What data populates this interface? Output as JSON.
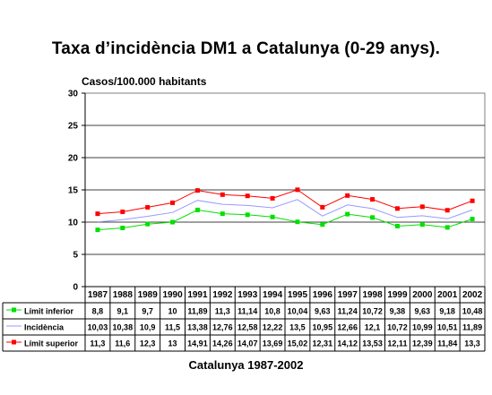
{
  "chart_data": {
    "type": "line",
    "title": "Taxa d’incidència DM1 a Catalunya (0-29 anys).",
    "ylabel": "Casos/100.000 habitants",
    "xlabel": "",
    "caption": "Catalunya 1987-2002",
    "ylim": [
      0,
      30
    ],
    "yticks": [
      0,
      5,
      10,
      15,
      20,
      25,
      30
    ],
    "grid": "horizontal",
    "legend": "data-table-below",
    "categories": [
      "1987",
      "1988",
      "1989",
      "1990",
      "1991",
      "1992",
      "1993",
      "1994",
      "1995",
      "1996",
      "1997",
      "1998",
      "1999",
      "2000",
      "2001",
      "2002"
    ],
    "series": [
      {
        "name": "Límit inferior",
        "color": "#00e000",
        "marker": "square",
        "values": [
          8.8,
          9.1,
          9.7,
          10,
          11.89,
          11.3,
          11.14,
          10.8,
          10.04,
          9.63,
          11.24,
          10.72,
          9.38,
          9.63,
          9.18,
          10.48
        ],
        "labels": [
          "8,8",
          "9,1",
          "9,7",
          "10",
          "11,89",
          "11,3",
          "11,14",
          "10,8",
          "10,04",
          "9,63",
          "11,24",
          "10,72",
          "9,38",
          "9,63",
          "9,18",
          "10,48"
        ]
      },
      {
        "name": "Incidència",
        "color": "#9999ff",
        "marker": "none",
        "values": [
          10.03,
          10.38,
          10.9,
          11.5,
          13.38,
          12.76,
          12.58,
          12.22,
          13.5,
          10.95,
          12.66,
          12.1,
          10.72,
          10.99,
          10.51,
          11.89
        ],
        "labels": [
          "10,03",
          "10,38",
          "10,9",
          "11,5",
          "13,38",
          "12,76",
          "12,58",
          "12,22",
          "13,5",
          "10,95",
          "12,66",
          "12,1",
          "10,72",
          "10,99",
          "10,51",
          "11,89"
        ]
      },
      {
        "name": "Límit superior",
        "color": "#ff0000",
        "marker": "square",
        "values": [
          11.3,
          11.6,
          12.3,
          13,
          14.91,
          14.26,
          14.07,
          13.69,
          15.02,
          12.31,
          14.12,
          13.53,
          12.11,
          12.39,
          11.84,
          13.3
        ],
        "labels": [
          "11,3",
          "11,6",
          "12,3",
          "13",
          "14,91",
          "14,26",
          "14,07",
          "13,69",
          "15,02",
          "12,31",
          "14,12",
          "13,53",
          "12,11",
          "12,39",
          "11,84",
          "13,3"
        ]
      }
    ]
  }
}
